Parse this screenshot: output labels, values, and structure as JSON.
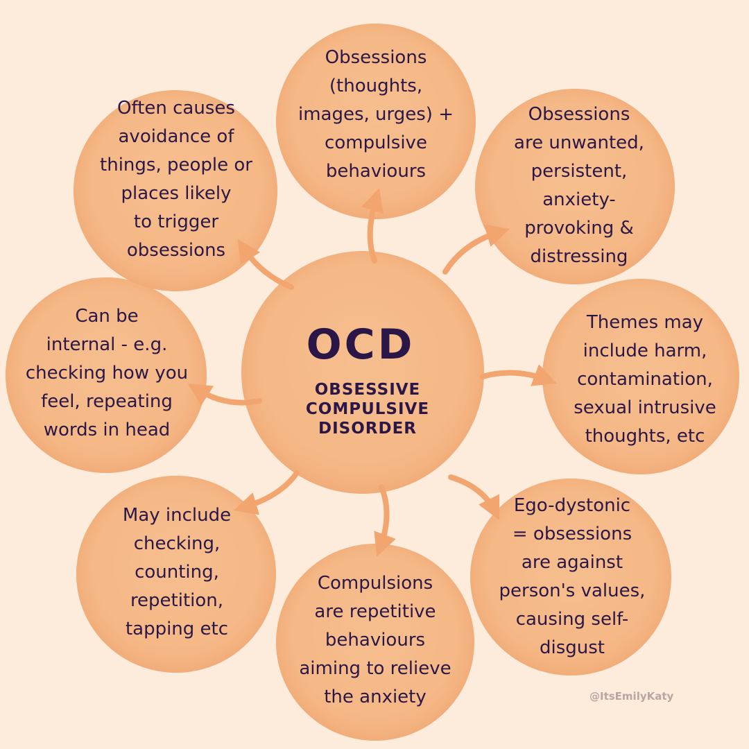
{
  "center": {
    "title": "OCD",
    "subtitle": "OBSESSIVE\nCOMPULSIVE\nDISORDER"
  },
  "nodes": {
    "top": "Obsessions\n(thoughts,\nimages, urges) +\ncompulsive\nbehaviours",
    "top_right": "Obsessions\nare unwanted,\npersistent,\nanxiety-\nprovoking &\ndistressing",
    "right": "Themes may\ninclude harm,\ncontamination,\nsexual intrusive\nthoughts, etc",
    "bottom_right": "Ego-dystonic\n= obsessions\nare against\nperson's values,\ncausing self-\ndisgust",
    "bottom": "Compulsions\nare repetitive\nbehaviours\naiming to relieve\nthe anxiety",
    "bottom_left": "May include\nchecking,\ncounting,\nrepetition,\ntapping etc",
    "left": "Can be\ninternal - e.g.\nchecking how you\nfeel, repeating\nwords in head",
    "top_left": "Often causes\navoidance of\nthings, people or\nplaces likely\nto trigger\nobsessions"
  },
  "credit": "@ItsEmilyKaty",
  "colors": {
    "background": "#fdebdc",
    "circle": "#f5b886",
    "text": "#2b1747",
    "arrow": "#f2a56e",
    "credit": "#b7a6a4"
  }
}
